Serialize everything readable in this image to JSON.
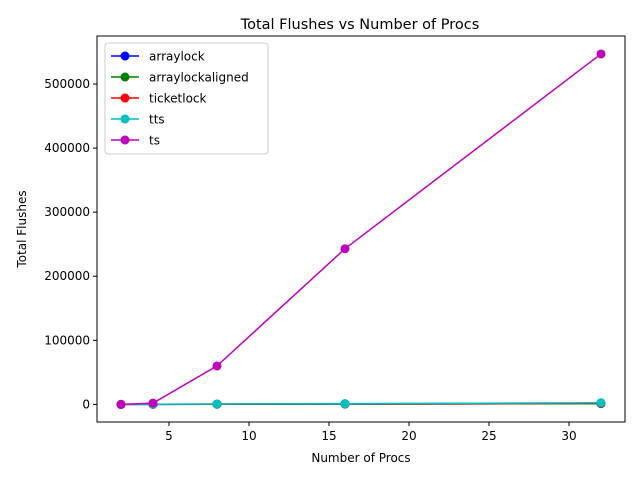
{
  "chart_data": {
    "type": "line",
    "title": "Total Flushes vs Number of Procs",
    "xlabel": "Number of Procs",
    "ylabel": "Total Flushes",
    "x": [
      2,
      4,
      8,
      16,
      32
    ],
    "xlim": [
      0.5,
      33.5
    ],
    "ylim": [
      -27500,
      575000
    ],
    "xticks": [
      5,
      10,
      15,
      20,
      25,
      30
    ],
    "yticks": [
      0,
      100000,
      200000,
      300000,
      400000,
      500000
    ],
    "grid": false,
    "legend_position": "top-left",
    "series": [
      {
        "name": "arraylock",
        "color": "#0000ff",
        "values": [
          0,
          100,
          250,
          600,
          1200
        ]
      },
      {
        "name": "arraylockaligned",
        "color": "#008000",
        "values": [
          0,
          100,
          250,
          600,
          1200
        ]
      },
      {
        "name": "ticketlock",
        "color": "#ff0000",
        "values": [
          0,
          150,
          400,
          900,
          1800
        ]
      },
      {
        "name": "tts",
        "color": "#00bfbf",
        "values": [
          0,
          200,
          500,
          1200,
          2500
        ]
      },
      {
        "name": "ts",
        "color": "#bf00bf",
        "values": [
          0,
          2000,
          60000,
          243000,
          547000
        ]
      }
    ]
  }
}
